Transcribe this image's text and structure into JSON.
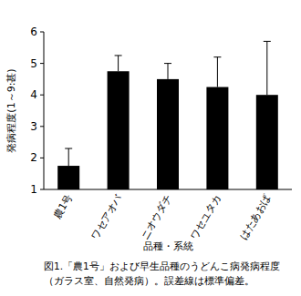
{
  "chart_data": {
    "type": "bar",
    "title": [
      "図1.「農1号」および早生品種のうどんこ病発病程度",
      "（ガラス室、自然発病）。誤差線は標準偏差。"
    ],
    "x_label": "品種・系統",
    "y_label": "発病程度(1～9:甚)",
    "categories": [
      "農1号",
      "ワセアオバ",
      "ニオウダチ",
      "ワセユタカ",
      "はたあおば"
    ],
    "values": [
      1.75,
      4.75,
      4.5,
      4.25,
      4.0
    ],
    "errors": [
      0.55,
      0.5,
      0.5,
      0.95,
      1.7
    ],
    "color": "#000000",
    "ylim": [
      1,
      6
    ],
    "yticks": [
      1,
      2,
      3,
      4,
      5,
      6
    ],
    "grid": false
  }
}
